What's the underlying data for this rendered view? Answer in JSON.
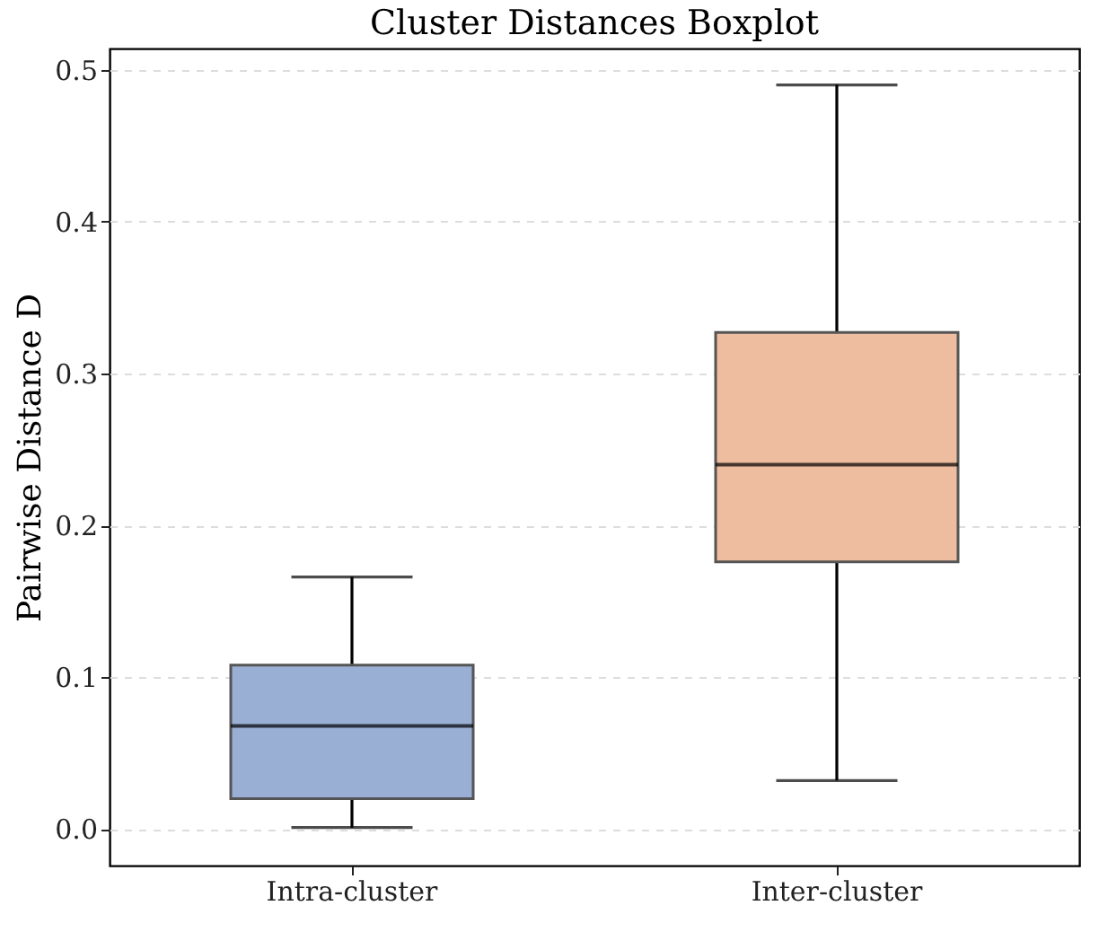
{
  "chart_data": {
    "type": "box",
    "title": "Cluster Distances Boxplot",
    "ylabel": "Pairwise Distance D",
    "categories": [
      "Intra-cluster",
      "Inter-cluster"
    ],
    "colors": [
      "#9aafd4",
      "#eebc9e"
    ],
    "boxes": [
      {
        "low": 0.001,
        "q1": 0.02,
        "median": 0.068,
        "q3": 0.108,
        "high": 0.166
      },
      {
        "low": 0.032,
        "q1": 0.176,
        "median": 0.24,
        "q3": 0.327,
        "high": 0.49
      }
    ],
    "ylim": [
      -0.024,
      0.514
    ],
    "yticks": [
      {
        "value": 0,
        "label": "0.0"
      },
      0.1,
      0.2,
      0.3,
      0.4,
      0.5
    ],
    "grid": "y"
  }
}
